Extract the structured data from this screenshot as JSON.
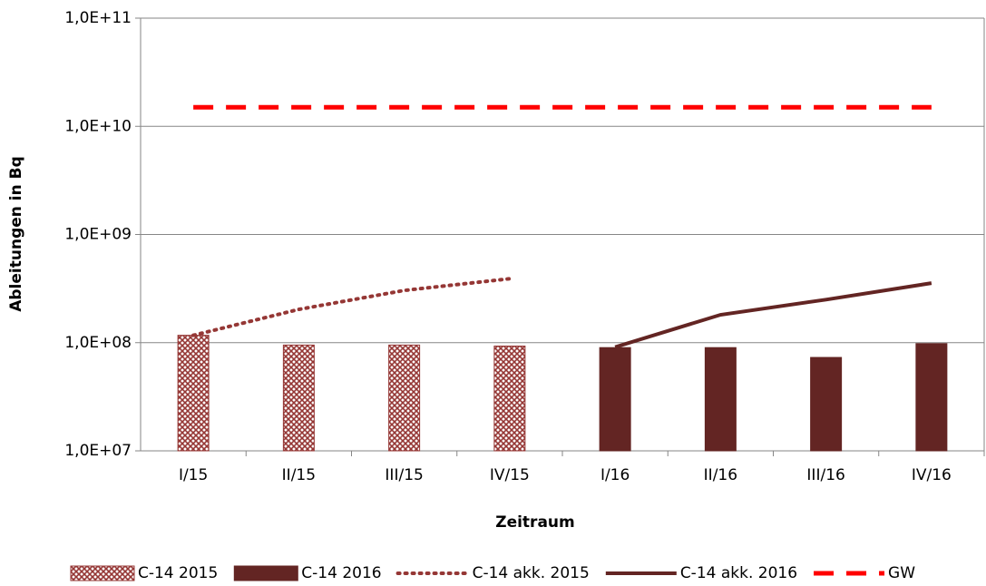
{
  "chart_data": {
    "type": "combo",
    "xlabel": "Zeitraum",
    "ylabel": "Ableitungen in Bq",
    "categories": [
      "I/15",
      "II/15",
      "III/15",
      "IV/15",
      "I/16",
      "II/16",
      "III/16",
      "IV/16"
    ],
    "ylim": [
      10000000,
      100000000000
    ],
    "log_scale": true,
    "grid": true,
    "yticks": [
      {
        "value": 10000000,
        "label": "1,0E+07"
      },
      {
        "value": 100000000,
        "label": "1,0E+08"
      },
      {
        "value": 1000000000,
        "label": "1,0E+09"
      },
      {
        "value": 10000000000,
        "label": "1,0E+10"
      },
      {
        "value": 100000000000,
        "label": "1,0E+11"
      }
    ],
    "legend": "bottom",
    "series": [
      {
        "name": "C-14 2015",
        "type": "bar",
        "pattern": "crosshatch",
        "color": "#953735",
        "values": [
          117000000,
          95000000,
          95000000,
          93000000,
          null,
          null,
          null,
          null
        ]
      },
      {
        "name": "C-14 2016",
        "type": "bar",
        "color": "#632523",
        "values": [
          null,
          null,
          null,
          null,
          90000000,
          90000000,
          73000000,
          98000000
        ]
      },
      {
        "name": "C-14 akk. 2015",
        "type": "line",
        "dash": "dotted",
        "color": "#953735",
        "values": [
          117000000,
          203000000,
          304000000,
          390000000,
          null,
          null,
          null,
          null
        ]
      },
      {
        "name": "C-14 akk. 2016",
        "type": "line",
        "dash": "solid",
        "color": "#632523",
        "values": [
          null,
          null,
          null,
          null,
          91000000,
          181000000,
          250000000,
          355000000
        ]
      },
      {
        "name": "GW",
        "type": "line",
        "dash": "dashed",
        "color": "#ff0000",
        "values": [
          15000000000,
          15000000000,
          15000000000,
          15000000000,
          15000000000,
          15000000000,
          15000000000,
          15000000000
        ]
      }
    ]
  }
}
